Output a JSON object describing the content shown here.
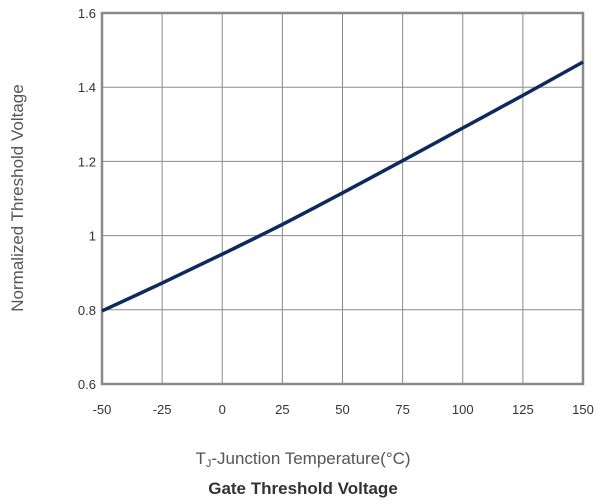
{
  "chart_data": {
    "type": "line",
    "title": "Gate Threshold Voltage",
    "xlabel_sub": "J",
    "xlabel_main": "T",
    "xlabel_rest": "-Junction Temperature(°C)",
    "ylabel": "Normalized Threshold Voltage",
    "xlim": [
      -50,
      150
    ],
    "ylim": [
      0.6,
      1.6
    ],
    "xticks": [
      -50,
      -25,
      0,
      25,
      50,
      75,
      100,
      125,
      150
    ],
    "yticks": [
      0.6,
      0.8,
      1,
      1.2,
      1.4,
      1.6
    ],
    "ytick_labels": [
      "0.6",
      "0.8",
      "1",
      "1.2",
      "1.4",
      "1.6"
    ],
    "grid": true,
    "series": [
      {
        "color": "#0d2a5c",
        "x": [
          -50,
          -25,
          0,
          25,
          50,
          75,
          100,
          125,
          150
        ],
        "y": [
          0.797,
          0.872,
          0.95,
          1.03,
          1.115,
          1.202,
          1.29,
          1.378,
          1.468
        ]
      }
    ]
  }
}
